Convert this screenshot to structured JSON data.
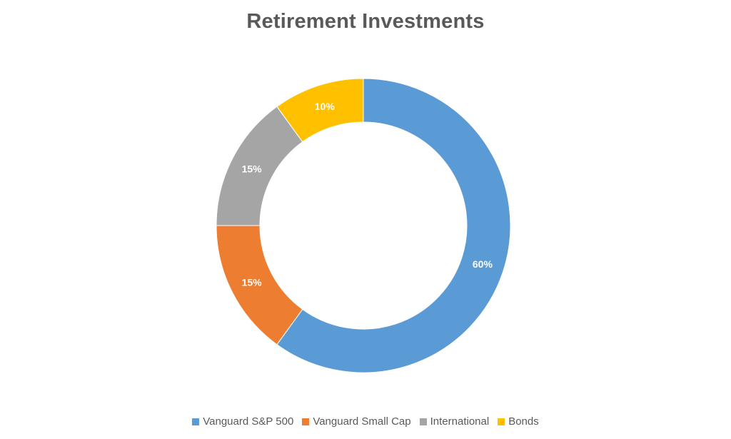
{
  "chart_data": {
    "type": "pie",
    "variant": "donut",
    "title": "Retirement Investments",
    "categories": [
      "Vanguard S&P 500",
      "Vanguard Small Cap",
      "International",
      "Bonds"
    ],
    "values": [
      60,
      15,
      15,
      10
    ],
    "labels": [
      "60%",
      "15%",
      "15%",
      "10%"
    ],
    "colors": [
      "#5B9BD5",
      "#ED7D31",
      "#A5A5A5",
      "#FFC000"
    ],
    "legend_position": "bottom",
    "start_angle": "12 o'clock",
    "direction": "clockwise"
  }
}
